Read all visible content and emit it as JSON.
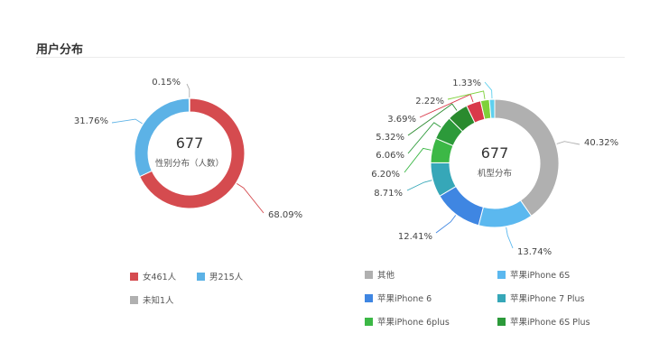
{
  "section": {
    "title": "用户分布"
  },
  "chart_data": [
    {
      "type": "pie",
      "center_value": "677",
      "center_label": "性别分布（人数）",
      "slices": [
        {
          "name": "女461人",
          "value": 461,
          "percent_label": "68.09%",
          "color": "#d54b4f"
        },
        {
          "name": "男215人",
          "value": 215,
          "percent_label": "31.76%",
          "color": "#5cb2e6"
        },
        {
          "name": "未知1人",
          "value": 1,
          "percent_label": "0.15%",
          "color": "#b0b0b0"
        }
      ]
    },
    {
      "type": "pie",
      "center_value": "677",
      "center_label": "机型分布",
      "slices": [
        {
          "name": "其他",
          "value": 40.32,
          "percent_label": "40.32%",
          "color": "#b0b0b0"
        },
        {
          "name": "苹果iPhone 6S",
          "value": 13.74,
          "percent_label": "13.74%",
          "color": "#5bb8ef"
        },
        {
          "name": "苹果iPhone 6",
          "value": 12.41,
          "percent_label": "12.41%",
          "color": "#3f86e2"
        },
        {
          "name": "苹果iPhone 7 Plus",
          "value": 8.71,
          "percent_label": "8.71%",
          "color": "#36a7b8"
        },
        {
          "name": "苹果iPhone 6plus",
          "value": 6.2,
          "percent_label": "6.20%",
          "color": "#3cb846"
        },
        {
          "name": "苹果iPhone 6S Plus",
          "value": 6.06,
          "percent_label": "6.06%",
          "color": "#2c9a3a"
        },
        {
          "name": "",
          "value": 5.32,
          "percent_label": "5.32%",
          "color": "#2a8a2e"
        },
        {
          "name": "",
          "value": 3.69,
          "percent_label": "3.69%",
          "color": "#d9394a"
        },
        {
          "name": "",
          "value": 2.22,
          "percent_label": "2.22%",
          "color": "#7ed13a"
        },
        {
          "name": "",
          "value": 1.33,
          "percent_label": "1.33%",
          "color": "#5ed0ee"
        }
      ]
    }
  ]
}
